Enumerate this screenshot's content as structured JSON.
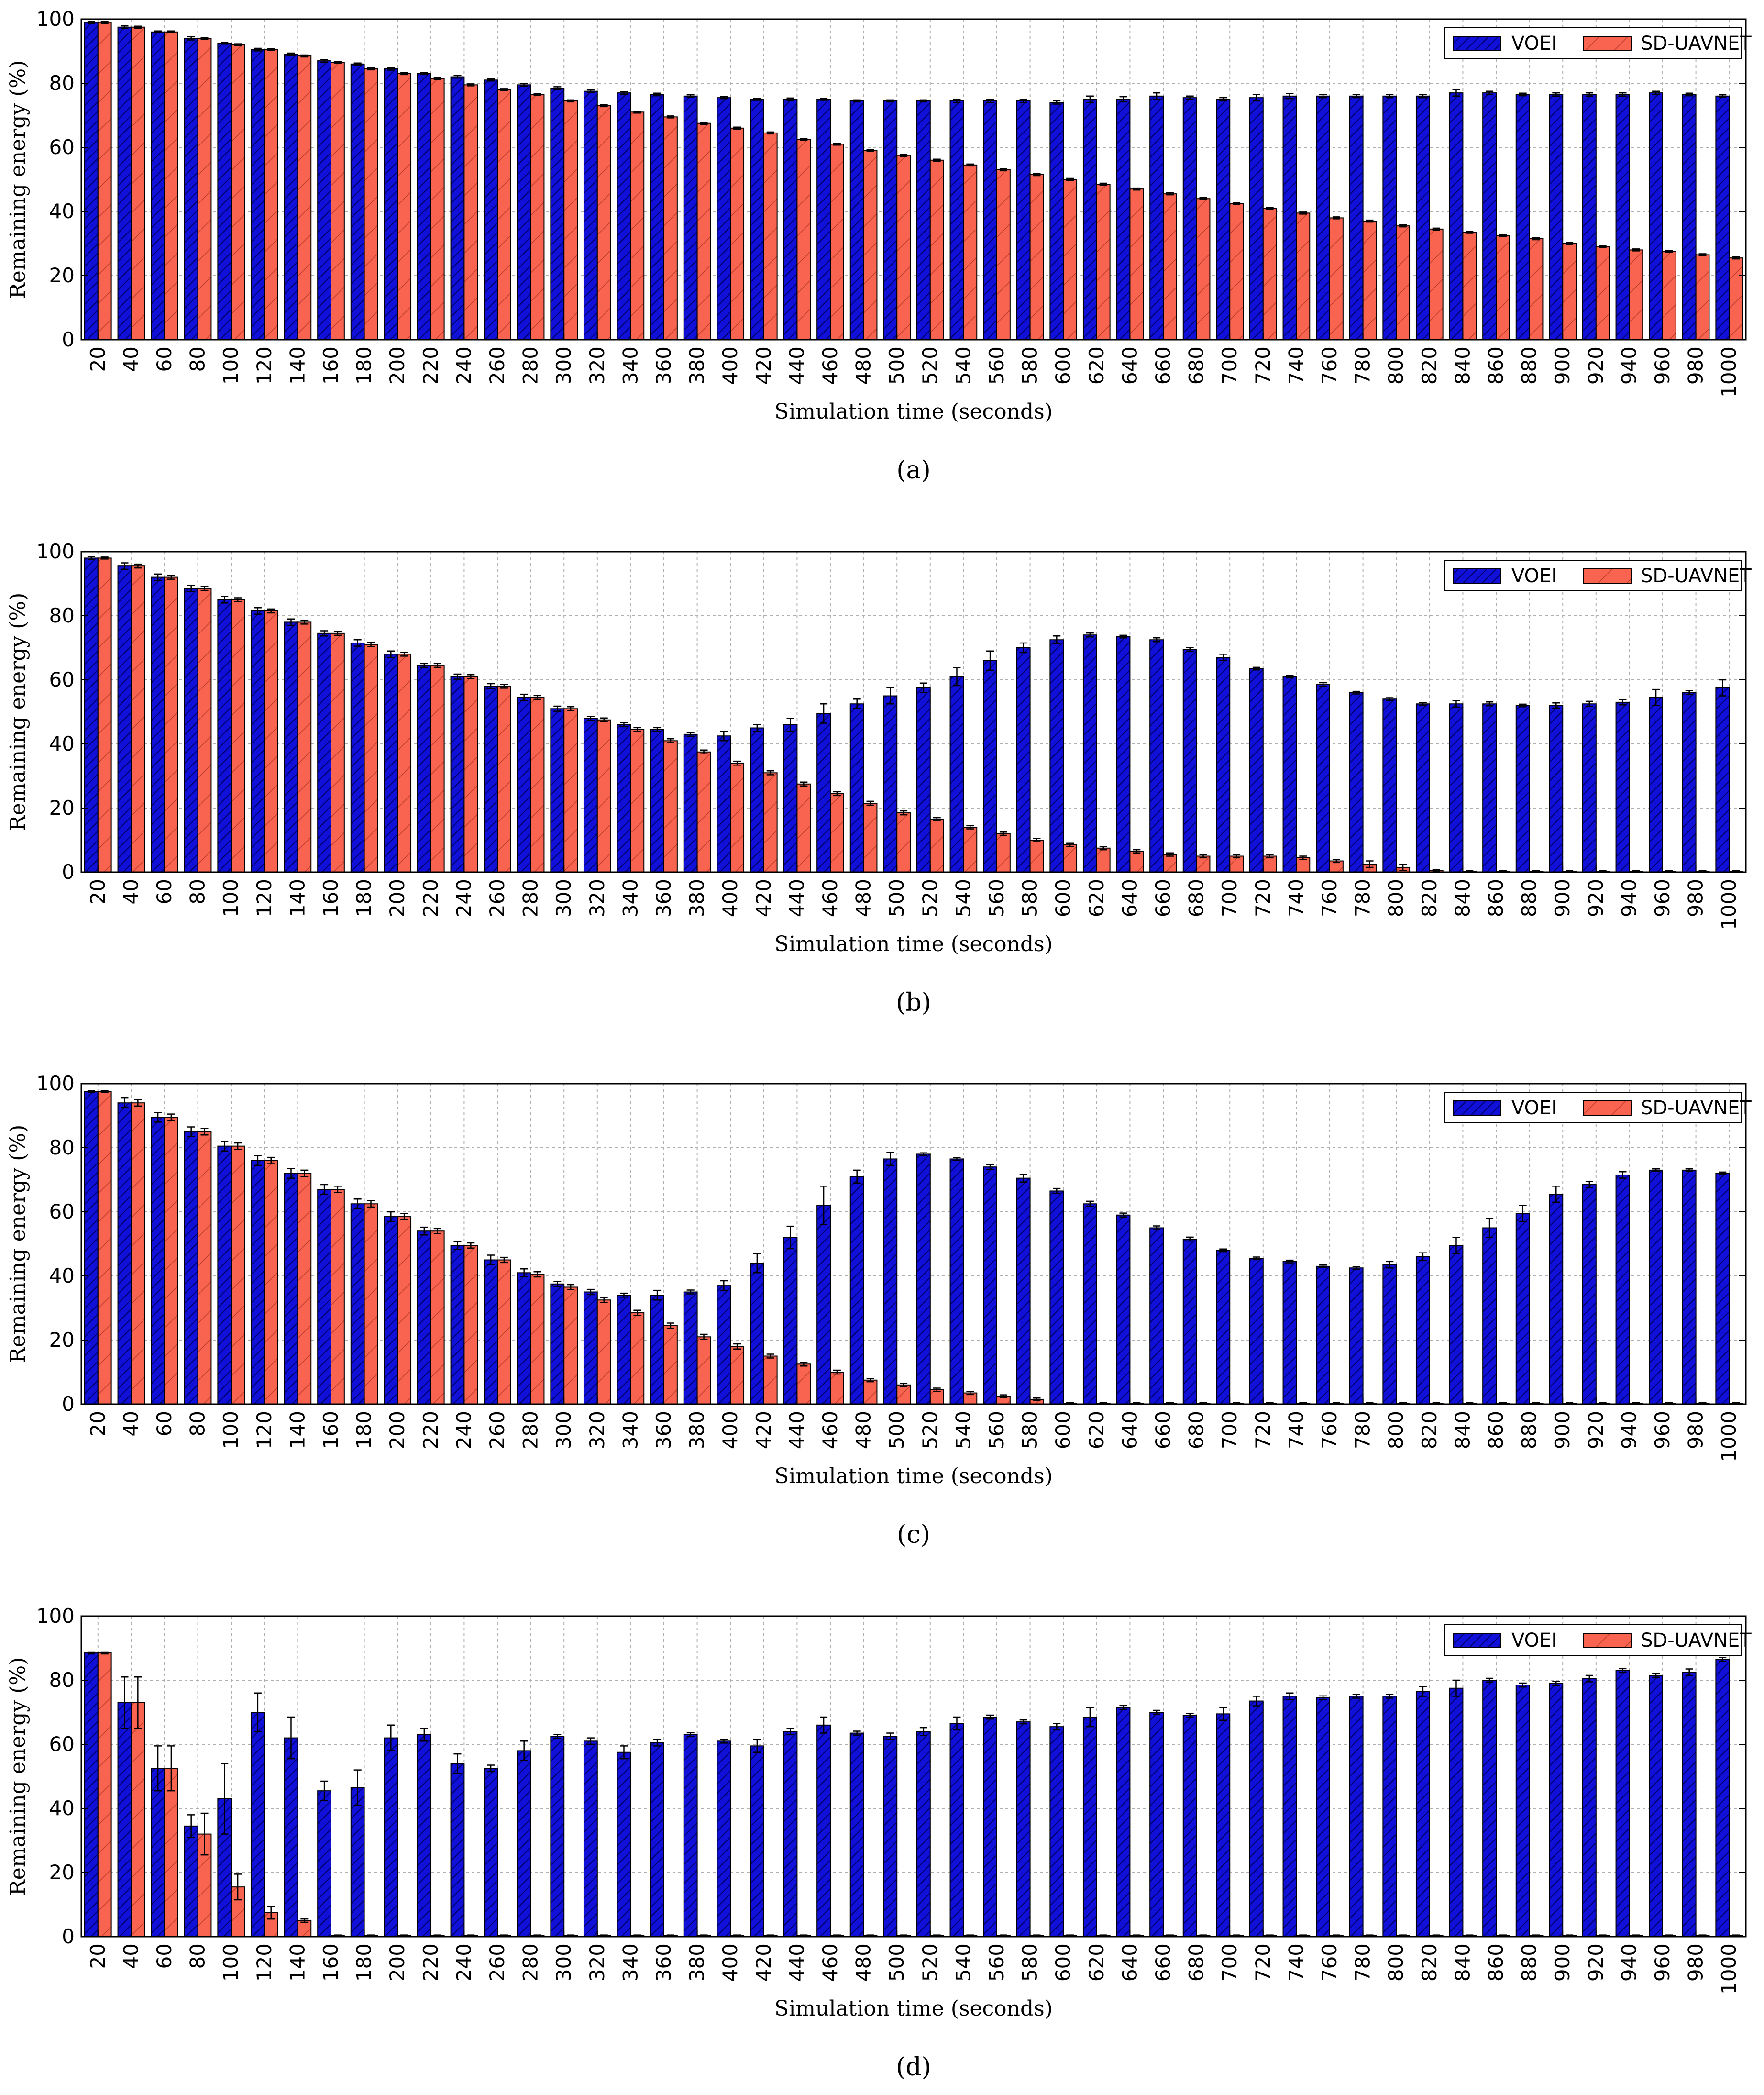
{
  "colors": {
    "voei": "#1010d8",
    "sdu": "#f86450",
    "grid": "#b0b0b0",
    "frame": "#000000"
  },
  "chart_data": [
    {
      "caption": "(a)",
      "type": "bar",
      "xlabel": "Simulation time (seconds)",
      "ylabel": "Remaining energy (%)",
      "ylim": [
        0,
        100
      ],
      "yticks": [
        0,
        20,
        40,
        60,
        80,
        100
      ],
      "legend": "top-right",
      "categories": [
        "20",
        "40",
        "60",
        "80",
        "100",
        "120",
        "140",
        "160",
        "180",
        "200",
        "220",
        "240",
        "260",
        "280",
        "300",
        "320",
        "340",
        "360",
        "380",
        "400",
        "420",
        "440",
        "460",
        "480",
        "500",
        "520",
        "540",
        "560",
        "580",
        "600",
        "620",
        "640",
        "660",
        "680",
        "700",
        "720",
        "740",
        "760",
        "780",
        "800",
        "820",
        "840",
        "860",
        "880",
        "900",
        "920",
        "940",
        "960",
        "980",
        "1000"
      ],
      "series": [
        {
          "name": "VOEI",
          "values": [
            99.0,
            97.5,
            96.0,
            94.0,
            92.5,
            90.5,
            89.0,
            87.0,
            86.0,
            84.5,
            83.0,
            82.0,
            81.0,
            79.5,
            78.5,
            77.5,
            77.0,
            76.5,
            76.0,
            75.5,
            75.0,
            75.0,
            75.0,
            74.5,
            74.5,
            74.5,
            74.5,
            74.5,
            74.5,
            74.0,
            75.0,
            75.0,
            76.0,
            75.5,
            75.0,
            75.5,
            76.0,
            76.0,
            76.0,
            76.0,
            76.0,
            77.0,
            77.0,
            76.5,
            76.5,
            76.5,
            76.5,
            77.0,
            76.5,
            76.0
          ],
          "errors": [
            0.3,
            0.4,
            0.3,
            0.5,
            0.3,
            0.4,
            0.4,
            0.4,
            0.3,
            0.4,
            0.3,
            0.4,
            0.3,
            0.4,
            0.4,
            0.4,
            0.4,
            0.4,
            0.4,
            0.3,
            0.3,
            0.4,
            0.3,
            0.3,
            0.3,
            0.3,
            0.5,
            0.5,
            0.5,
            0.5,
            1.0,
            0.8,
            1.0,
            0.5,
            0.5,
            1.0,
            0.8,
            0.5,
            0.5,
            0.5,
            0.5,
            1.0,
            0.5,
            0.4,
            0.5,
            0.5,
            0.5,
            0.5,
            0.4,
            0.4
          ]
        },
        {
          "name": "SD-UAVNET",
          "values": [
            99.0,
            97.5,
            96.0,
            94.0,
            92.0,
            90.5,
            88.5,
            86.5,
            84.5,
            83.0,
            81.5,
            79.5,
            78.0,
            76.5,
            74.5,
            73.0,
            71.0,
            69.5,
            67.5,
            66.0,
            64.5,
            62.5,
            61.0,
            59.0,
            57.5,
            56.0,
            54.5,
            53.0,
            51.5,
            50.0,
            48.5,
            47.0,
            45.5,
            44.0,
            42.5,
            41.0,
            39.5,
            38.0,
            37.0,
            35.5,
            34.5,
            33.5,
            32.5,
            31.5,
            30.0,
            29.0,
            28.0,
            27.5,
            26.5,
            25.5
          ],
          "errors": [
            0.3,
            0.3,
            0.3,
            0.3,
            0.3,
            0.3,
            0.3,
            0.3,
            0.3,
            0.3,
            0.3,
            0.3,
            0.3,
            0.3,
            0.3,
            0.3,
            0.3,
            0.3,
            0.3,
            0.3,
            0.3,
            0.3,
            0.3,
            0.3,
            0.3,
            0.3,
            0.3,
            0.3,
            0.3,
            0.3,
            0.3,
            0.3,
            0.3,
            0.3,
            0.3,
            0.3,
            0.3,
            0.3,
            0.3,
            0.3,
            0.3,
            0.3,
            0.3,
            0.3,
            0.3,
            0.3,
            0.3,
            0.3,
            0.3,
            0.3
          ]
        }
      ]
    },
    {
      "caption": "(b)",
      "type": "bar",
      "xlabel": "Simulation time (seconds)",
      "ylabel": "Remaining energy (%)",
      "ylim": [
        0,
        100
      ],
      "yticks": [
        0,
        20,
        40,
        60,
        80,
        100
      ],
      "legend": "top-right",
      "categories": [
        "20",
        "40",
        "60",
        "80",
        "100",
        "120",
        "140",
        "160",
        "180",
        "200",
        "220",
        "240",
        "260",
        "280",
        "300",
        "320",
        "340",
        "360",
        "380",
        "400",
        "420",
        "440",
        "460",
        "480",
        "500",
        "520",
        "540",
        "560",
        "580",
        "600",
        "620",
        "640",
        "660",
        "680",
        "700",
        "720",
        "740",
        "760",
        "780",
        "800",
        "820",
        "840",
        "860",
        "880",
        "900",
        "920",
        "940",
        "960",
        "980",
        "1000"
      ],
      "series": [
        {
          "name": "VOEI",
          "values": [
            98.0,
            95.5,
            92.0,
            88.5,
            85.0,
            81.5,
            78.0,
            74.5,
            71.5,
            68.0,
            64.5,
            61.0,
            58.0,
            54.5,
            51.0,
            48.0,
            46.0,
            44.5,
            43.0,
            42.5,
            45.0,
            46.0,
            49.5,
            52.5,
            55.0,
            57.5,
            61.0,
            66.0,
            70.0,
            72.5,
            74.0,
            73.5,
            72.5,
            69.5,
            67.0,
            63.5,
            61.0,
            58.5,
            56.0,
            54.0,
            52.5,
            52.5,
            52.5,
            52.0,
            52.0,
            52.5,
            53.0,
            54.5,
            56.0,
            57.5
          ],
          "errors": [
            0.4,
            1.0,
            1.0,
            1.0,
            1.0,
            1.0,
            1.0,
            0.8,
            1.0,
            1.0,
            0.6,
            0.8,
            0.8,
            1.0,
            0.8,
            0.6,
            0.6,
            0.6,
            0.6,
            1.5,
            1.0,
            2.0,
            3.0,
            1.5,
            2.5,
            1.5,
            2.8,
            3.0,
            1.5,
            1.2,
            0.6,
            0.4,
            0.6,
            0.6,
            1.0,
            0.4,
            0.4,
            0.6,
            0.4,
            0.4,
            0.4,
            1.0,
            0.6,
            0.4,
            0.8,
            0.8,
            0.8,
            2.5,
            0.6,
            2.5
          ]
        },
        {
          "name": "SD-UAVNET",
          "values": [
            98.0,
            95.5,
            92.0,
            88.5,
            85.0,
            81.5,
            78.0,
            74.5,
            71.0,
            68.0,
            64.5,
            61.0,
            58.0,
            54.5,
            51.0,
            47.5,
            44.5,
            41.0,
            37.5,
            34.0,
            31.0,
            27.5,
            24.5,
            21.5,
            18.5,
            16.5,
            14.0,
            12.0,
            10.0,
            8.5,
            7.5,
            6.5,
            5.5,
            5.0,
            5.0,
            5.0,
            4.5,
            3.5,
            2.5,
            1.5,
            0.5,
            0.3,
            0.3,
            0.3,
            0.3,
            0.3,
            0.3,
            0.3,
            0.3,
            0.3
          ],
          "errors": [
            0.3,
            0.6,
            0.6,
            0.6,
            0.6,
            0.6,
            0.6,
            0.6,
            0.6,
            0.6,
            0.6,
            0.6,
            0.6,
            0.6,
            0.6,
            0.6,
            0.6,
            0.6,
            0.6,
            0.6,
            0.6,
            0.6,
            0.6,
            0.6,
            0.6,
            0.5,
            0.5,
            0.5,
            0.5,
            0.5,
            0.5,
            0.5,
            0.5,
            0.5,
            0.5,
            0.5,
            0.5,
            0.5,
            1.0,
            1.0,
            0.2,
            0.2,
            0.2,
            0.2,
            0.2,
            0.2,
            0.2,
            0.2,
            0.2,
            0.2
          ]
        }
      ]
    },
    {
      "caption": "(c)",
      "type": "bar",
      "xlabel": "Simulation time (seconds)",
      "ylabel": "Remaining energy (%)",
      "ylim": [
        0,
        100
      ],
      "yticks": [
        0,
        20,
        40,
        60,
        80,
        100
      ],
      "legend": "top-right",
      "categories": [
        "20",
        "40",
        "60",
        "80",
        "100",
        "120",
        "140",
        "160",
        "180",
        "200",
        "220",
        "240",
        "260",
        "280",
        "300",
        "320",
        "340",
        "360",
        "380",
        "400",
        "420",
        "440",
        "460",
        "480",
        "500",
        "520",
        "540",
        "560",
        "580",
        "600",
        "620",
        "640",
        "660",
        "680",
        "700",
        "720",
        "740",
        "760",
        "780",
        "800",
        "820",
        "840",
        "860",
        "880",
        "900",
        "920",
        "940",
        "960",
        "980",
        "1000"
      ],
      "series": [
        {
          "name": "VOEI",
          "values": [
            97.5,
            94.0,
            89.5,
            85.0,
            80.5,
            76.0,
            72.0,
            67.0,
            62.5,
            58.5,
            54.0,
            49.5,
            45.0,
            41.0,
            37.5,
            35.0,
            34.0,
            34.0,
            35.0,
            37.0,
            44.0,
            52.0,
            62.0,
            71.0,
            76.5,
            78.0,
            76.5,
            74.0,
            70.5,
            66.5,
            62.5,
            59.0,
            55.0,
            51.5,
            48.0,
            45.5,
            44.5,
            43.0,
            42.5,
            43.5,
            46.0,
            49.5,
            55.0,
            59.5,
            65.5,
            68.5,
            71.5,
            73.0,
            73.0,
            72.0
          ],
          "errors": [
            0.3,
            1.5,
            1.5,
            1.5,
            1.5,
            1.5,
            1.5,
            1.5,
            1.5,
            1.5,
            1.2,
            1.2,
            1.5,
            1.2,
            0.8,
            0.8,
            0.6,
            1.5,
            0.6,
            1.5,
            3.0,
            3.5,
            6.0,
            2.0,
            2.0,
            0.4,
            0.4,
            0.8,
            1.2,
            0.8,
            0.8,
            0.6,
            0.6,
            0.6,
            0.4,
            0.4,
            0.4,
            0.4,
            0.4,
            1.0,
            1.2,
            2.5,
            3.0,
            2.5,
            2.5,
            1.0,
            1.0,
            0.4,
            0.4,
            0.4
          ]
        },
        {
          "name": "SD-UAVNET",
          "values": [
            97.5,
            94.0,
            89.5,
            85.0,
            80.5,
            76.0,
            72.0,
            67.0,
            62.5,
            58.5,
            54.0,
            49.5,
            45.0,
            40.5,
            36.5,
            32.5,
            28.5,
            24.5,
            21.0,
            18.0,
            15.0,
            12.5,
            10.0,
            7.5,
            6.0,
            4.5,
            3.5,
            2.5,
            1.5,
            0.3,
            0.3,
            0.3,
            0.3,
            0.3,
            0.3,
            0.3,
            0.3,
            0.3,
            0.3,
            0.3,
            0.3,
            0.3,
            0.3,
            0.3,
            0.3,
            0.3,
            0.3,
            0.3,
            0.3,
            0.3
          ],
          "errors": [
            0.3,
            1.0,
            1.0,
            1.0,
            1.0,
            1.0,
            1.0,
            1.0,
            1.0,
            1.0,
            0.8,
            0.8,
            0.8,
            0.8,
            0.8,
            0.8,
            0.8,
            0.8,
            0.8,
            0.8,
            0.6,
            0.6,
            0.6,
            0.5,
            0.5,
            0.5,
            0.5,
            0.4,
            0.4,
            0.2,
            0.2,
            0.2,
            0.2,
            0.2,
            0.2,
            0.2,
            0.2,
            0.2,
            0.2,
            0.2,
            0.2,
            0.2,
            0.2,
            0.2,
            0.2,
            0.2,
            0.2,
            0.2,
            0.2,
            0.2
          ]
        }
      ]
    },
    {
      "caption": "(d)",
      "type": "bar",
      "xlabel": "Simulation time (seconds)",
      "ylabel": "Remaining energy (%)",
      "ylim": [
        0,
        100
      ],
      "yticks": [
        0,
        20,
        40,
        60,
        80,
        100
      ],
      "legend": "top-right",
      "categories": [
        "20",
        "40",
        "60",
        "80",
        "100",
        "120",
        "140",
        "160",
        "180",
        "200",
        "220",
        "240",
        "260",
        "280",
        "300",
        "320",
        "340",
        "360",
        "380",
        "400",
        "420",
        "440",
        "460",
        "480",
        "500",
        "520",
        "540",
        "560",
        "580",
        "600",
        "620",
        "640",
        "660",
        "680",
        "700",
        "720",
        "740",
        "760",
        "780",
        "800",
        "820",
        "840",
        "860",
        "880",
        "900",
        "920",
        "940",
        "960",
        "980",
        "1000"
      ],
      "series": [
        {
          "name": "VOEI",
          "values": [
            88.5,
            73.0,
            52.5,
            34.5,
            43.0,
            70.0,
            62.0,
            45.5,
            46.5,
            62.0,
            63.0,
            54.0,
            52.5,
            58.0,
            62.5,
            61.0,
            57.5,
            60.5,
            63.0,
            61.0,
            59.5,
            64.0,
            66.0,
            63.5,
            62.5,
            64.0,
            66.5,
            68.5,
            67.0,
            65.5,
            68.5,
            71.5,
            70.0,
            69.0,
            69.5,
            73.5,
            75.0,
            74.5,
            75.0,
            75.0,
            76.5,
            77.5,
            80.0,
            78.5,
            79.0,
            80.5,
            83.0,
            81.5,
            82.5,
            86.5
          ],
          "errors": [
            0.3,
            8.0,
            7.0,
            3.5,
            11.0,
            6.0,
            6.5,
            3.0,
            5.5,
            4.0,
            2.0,
            3.0,
            1.0,
            3.0,
            0.6,
            1.0,
            2.0,
            1.0,
            0.6,
            0.6,
            2.0,
            1.0,
            2.5,
            0.6,
            1.0,
            1.2,
            2.0,
            0.6,
            0.6,
            1.0,
            3.0,
            0.6,
            0.6,
            0.6,
            2.0,
            1.5,
            1.0,
            0.6,
            0.6,
            0.6,
            1.5,
            2.5,
            0.6,
            0.6,
            0.6,
            1.0,
            0.6,
            0.6,
            1.0,
            0.6
          ]
        },
        {
          "name": "SD-UAVNET",
          "values": [
            88.5,
            73.0,
            52.5,
            32.0,
            15.5,
            7.5,
            5.0,
            0.3,
            0.3,
            0.3,
            0.3,
            0.3,
            0.3,
            0.3,
            0.3,
            0.3,
            0.3,
            0.3,
            0.3,
            0.3,
            0.3,
            0.3,
            0.3,
            0.3,
            0.3,
            0.3,
            0.3,
            0.3,
            0.3,
            0.3,
            0.3,
            0.3,
            0.3,
            0.3,
            0.3,
            0.3,
            0.3,
            0.3,
            0.3,
            0.3,
            0.3,
            0.3,
            0.3,
            0.3,
            0.3,
            0.3,
            0.3,
            0.3,
            0.3,
            0.3
          ],
          "errors": [
            0.3,
            8.0,
            7.0,
            6.5,
            4.0,
            2.0,
            0.5,
            0.2,
            0.2,
            0.2,
            0.2,
            0.2,
            0.2,
            0.2,
            0.2,
            0.2,
            0.2,
            0.2,
            0.2,
            0.2,
            0.2,
            0.2,
            0.2,
            0.2,
            0.2,
            0.2,
            0.2,
            0.2,
            0.2,
            0.2,
            0.2,
            0.2,
            0.2,
            0.2,
            0.2,
            0.2,
            0.2,
            0.2,
            0.2,
            0.2,
            0.2,
            0.2,
            0.2,
            0.2,
            0.2,
            0.2,
            0.2,
            0.2,
            0.2,
            0.2
          ]
        }
      ]
    }
  ]
}
